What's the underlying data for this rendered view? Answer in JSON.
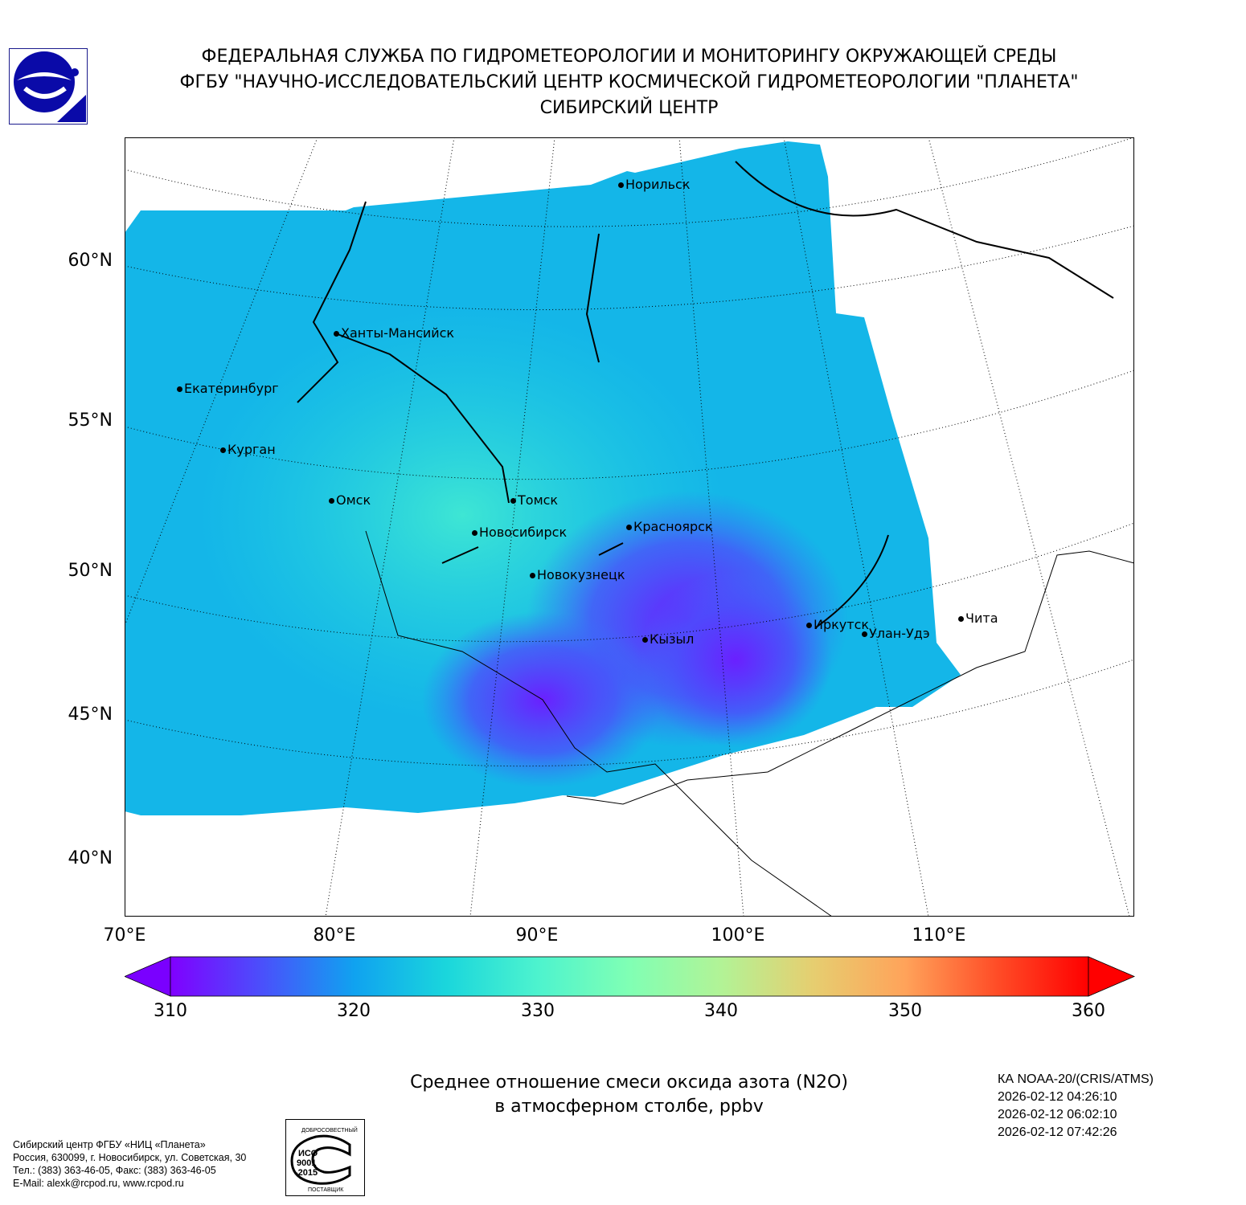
{
  "header": {
    "line1": "ФЕДЕРАЛЬНАЯ СЛУЖБА ПО ГИДРОМЕТЕОРОЛОГИИ И МОНИТОРИНГУ ОКРУЖАЮЩЕЙ СРЕДЫ",
    "line2": "ФГБУ \"НАУЧНО-ИССЛЕДОВАТЕЛЬСКИЙ ЦЕНТР КОСМИЧЕСКОЙ ГИДРОМЕТЕОРОЛОГИИ \"ПЛАНЕТА\"",
    "line3": "СИБИРСКИЙ ЦЕНТР"
  },
  "map": {
    "lat_labels": [
      "60°N",
      "55°N",
      "50°N",
      "45°N",
      "40°N"
    ],
    "lon_labels": [
      "70°E",
      "80°E",
      "90°E",
      "100°E",
      "110°E"
    ],
    "cities": [
      "Норильск",
      "Ханты-Мансийск",
      "Екатеринбург",
      "Курган",
      "Омск",
      "Томск",
      "Новосибирск",
      "Красноярск",
      "Новокузнецк",
      "Кызыл",
      "Иркутск",
      "Улан-Удэ",
      "Чита"
    ],
    "colors": {
      "low": "#8000ff",
      "mid": "#1ad0e0",
      "high": "#ff0000"
    }
  },
  "colorbar": {
    "ticks": [
      "310",
      "320",
      "330",
      "340",
      "350",
      "360"
    ],
    "min": 310,
    "max": 360,
    "extend": "both"
  },
  "title": {
    "line1": "Среднее отношение смеси оксида азота (N2O)",
    "line2": "в атмосферном столбе, ppbv"
  },
  "satellite": {
    "name": "КА NOAA-20/(CRIS/ATMS)",
    "times": [
      "2026-02-12 04:26:10",
      "2026-02-12 06:02:10",
      "2026-02-12 07:42:26"
    ]
  },
  "footer": {
    "lines": [
      "Сибирский центр ФГБУ «НИЦ «Планета»",
      "Россия, 630099, г. Новосибирск, ул. Советская, 30",
      "Тел.: (383) 363-46-05, Факс: (383) 363-46-05",
      "E-Mail: alexk@rcpod.ru, www.rcpod.ru"
    ]
  },
  "iso_stamp": {
    "top": "ДОБРОСОВЕСТНЫЙ",
    "center": "ИСО 9001 -2015",
    "bottom": "ПОСТАВЩИК"
  }
}
